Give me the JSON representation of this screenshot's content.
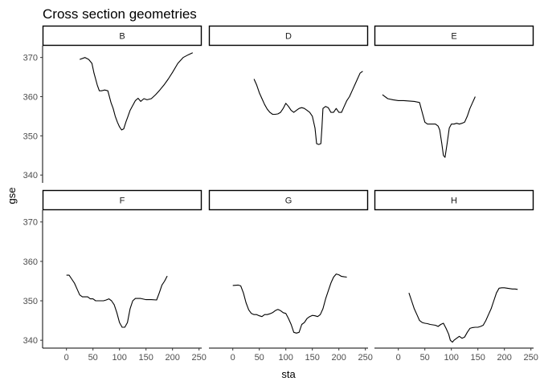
{
  "chart_data": {
    "type": "line",
    "title": "Cross section geometries",
    "xlabel": "sta",
    "ylabel": "gse",
    "xlim": [
      -45,
      255
    ],
    "ylim": [
      338,
      373
    ],
    "x_ticks": [
      0,
      50,
      100,
      150,
      200,
      250
    ],
    "y_ticks": [
      340,
      350,
      360,
      370
    ],
    "grid": false,
    "panels": [
      {
        "name": "B",
        "x": [
          25,
          35,
          42,
          48,
          52,
          55,
          58,
          62,
          66,
          72,
          78,
          84,
          88,
          92,
          96,
          100,
          104,
          108,
          112,
          116,
          120,
          124,
          130,
          135,
          140,
          146,
          152,
          160,
          168,
          176,
          184,
          192,
          200,
          210,
          220,
          230,
          238
        ],
        "y": [
          369.5,
          370,
          369.5,
          368.5,
          366,
          364.5,
          363,
          361.5,
          361.5,
          361.7,
          361.5,
          358.5,
          357,
          355,
          353.5,
          352.3,
          351.5,
          351.8,
          353.5,
          355,
          356.5,
          357.5,
          359,
          359.6,
          358.8,
          359.5,
          359.2,
          359.5,
          360.5,
          361.7,
          363,
          364.5,
          366.2,
          368.5,
          370,
          370.7,
          371.2
        ]
      },
      {
        "name": "D",
        "x": [
          40,
          45,
          50,
          55,
          60,
          65,
          70,
          75,
          80,
          85,
          90,
          95,
          100,
          105,
          110,
          115,
          120,
          125,
          130,
          135,
          140,
          145,
          150,
          155,
          158,
          162,
          166,
          168,
          170,
          175,
          180,
          185,
          190,
          195,
          200,
          205,
          210,
          215,
          220,
          225,
          230,
          235,
          240,
          245
        ],
        "y": [
          364.5,
          363,
          361,
          359.5,
          358,
          356.8,
          356,
          355.5,
          355.5,
          355.6,
          356,
          357,
          358.3,
          357.5,
          356.5,
          356,
          356.5,
          357,
          357.2,
          357,
          356.5,
          356,
          355,
          352,
          348,
          347.8,
          348,
          352,
          357,
          357.5,
          357.2,
          356,
          356,
          357,
          356,
          356,
          357.5,
          359,
          360,
          361.5,
          363,
          364.5,
          366,
          366.5
        ]
      },
      {
        "name": "E",
        "x": [
          -30,
          -20,
          -10,
          0,
          10,
          20,
          30,
          40,
          45,
          50,
          55,
          60,
          65,
          70,
          75,
          78,
          82,
          85,
          88,
          92,
          96,
          100,
          105,
          110,
          115,
          120,
          125,
          130,
          135,
          140,
          145
        ],
        "y": [
          360.5,
          359.5,
          359.2,
          359,
          359,
          358.9,
          358.8,
          358.5,
          356,
          353.5,
          353,
          353,
          353,
          353,
          352.5,
          351.5,
          348,
          345,
          344.5,
          348,
          352,
          353,
          353,
          353.2,
          353,
          353.2,
          353.5,
          355,
          357,
          358.5,
          360
        ]
      },
      {
        "name": "F",
        "x": [
          0,
          5,
          10,
          15,
          20,
          25,
          30,
          35,
          40,
          45,
          50,
          55,
          60,
          65,
          70,
          75,
          80,
          85,
          90,
          95,
          100,
          105,
          110,
          115,
          120,
          125,
          130,
          140,
          150,
          160,
          170,
          175,
          180,
          185,
          190
        ],
        "y": [
          356.5,
          356.5,
          355.5,
          354.5,
          353,
          351.5,
          351,
          351,
          351,
          350.5,
          350.5,
          350,
          350,
          350,
          350,
          350.2,
          350.5,
          350,
          349,
          347,
          344.5,
          343.3,
          343.3,
          344.5,
          348,
          350,
          350.6,
          350.6,
          350.3,
          350.3,
          350.2,
          352,
          354,
          355,
          356.3
        ]
      },
      {
        "name": "G",
        "x": [
          0,
          10,
          15,
          20,
          25,
          30,
          35,
          40,
          45,
          50,
          55,
          60,
          65,
          70,
          75,
          80,
          85,
          90,
          95,
          100,
          105,
          110,
          115,
          120,
          125,
          130,
          135,
          140,
          145,
          150,
          155,
          160,
          165,
          170,
          175,
          180,
          185,
          190,
          195,
          200,
          205,
          210,
          215
        ],
        "y": [
          353.9,
          354,
          353.8,
          352,
          349.5,
          347.7,
          346.8,
          346.5,
          346.5,
          346.2,
          346,
          346.5,
          346.5,
          346.7,
          347,
          347.5,
          347.8,
          347.5,
          347,
          346.8,
          345.5,
          344,
          342,
          341.8,
          342,
          344,
          344.5,
          345.5,
          346,
          346.3,
          346.2,
          346,
          346.5,
          348,
          350.5,
          352.5,
          354.5,
          356,
          356.8,
          356.6,
          356.2,
          356.1,
          356
        ]
      },
      {
        "name": "H",
        "x": [
          20,
          25,
          30,
          35,
          40,
          45,
          50,
          55,
          60,
          65,
          70,
          75,
          80,
          85,
          90,
          95,
          98,
          102,
          105,
          110,
          115,
          120,
          125,
          130,
          135,
          140,
          145,
          150,
          155,
          160,
          165,
          170,
          175,
          180,
          185,
          190,
          195,
          200,
          205,
          210,
          215,
          220,
          225
        ],
        "y": [
          352,
          350,
          348,
          346.5,
          345,
          344.5,
          344.3,
          344.2,
          344,
          343.9,
          343.8,
          343.5,
          344,
          344.3,
          343,
          341.5,
          340,
          339.5,
          340,
          340.5,
          341,
          340.5,
          340.8,
          342,
          343,
          343.2,
          343.3,
          343.3,
          343.5,
          343.8,
          345,
          346.5,
          348,
          350,
          352,
          353.2,
          353.3,
          353.3,
          353.2,
          353.1,
          353,
          353,
          352.9
        ]
      }
    ]
  }
}
